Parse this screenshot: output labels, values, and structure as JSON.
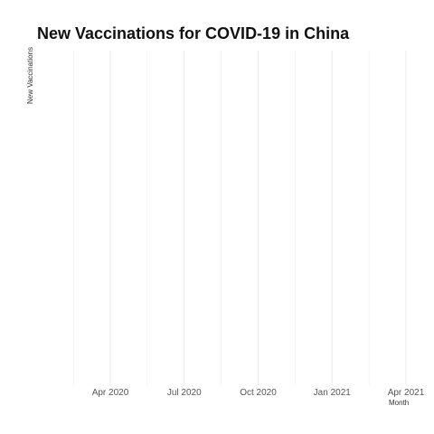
{
  "chart_data": {
    "type": "line",
    "title": "New Vaccinations for COVID-19 in China",
    "xlabel": "Month",
    "ylabel": "New Vaccinations",
    "x_ticks": [
      "Apr 2020",
      "Jul 2020",
      "Oct 2020",
      "Jan 2021",
      "Apr 2021"
    ],
    "series": [
      {
        "name": "New Vaccinations",
        "x": [],
        "values": []
      }
    ],
    "grid": true,
    "colors": {
      "grid": "#ebebeb",
      "title": "#111111",
      "tick": "#555555",
      "axis_label": "#333333"
    }
  }
}
